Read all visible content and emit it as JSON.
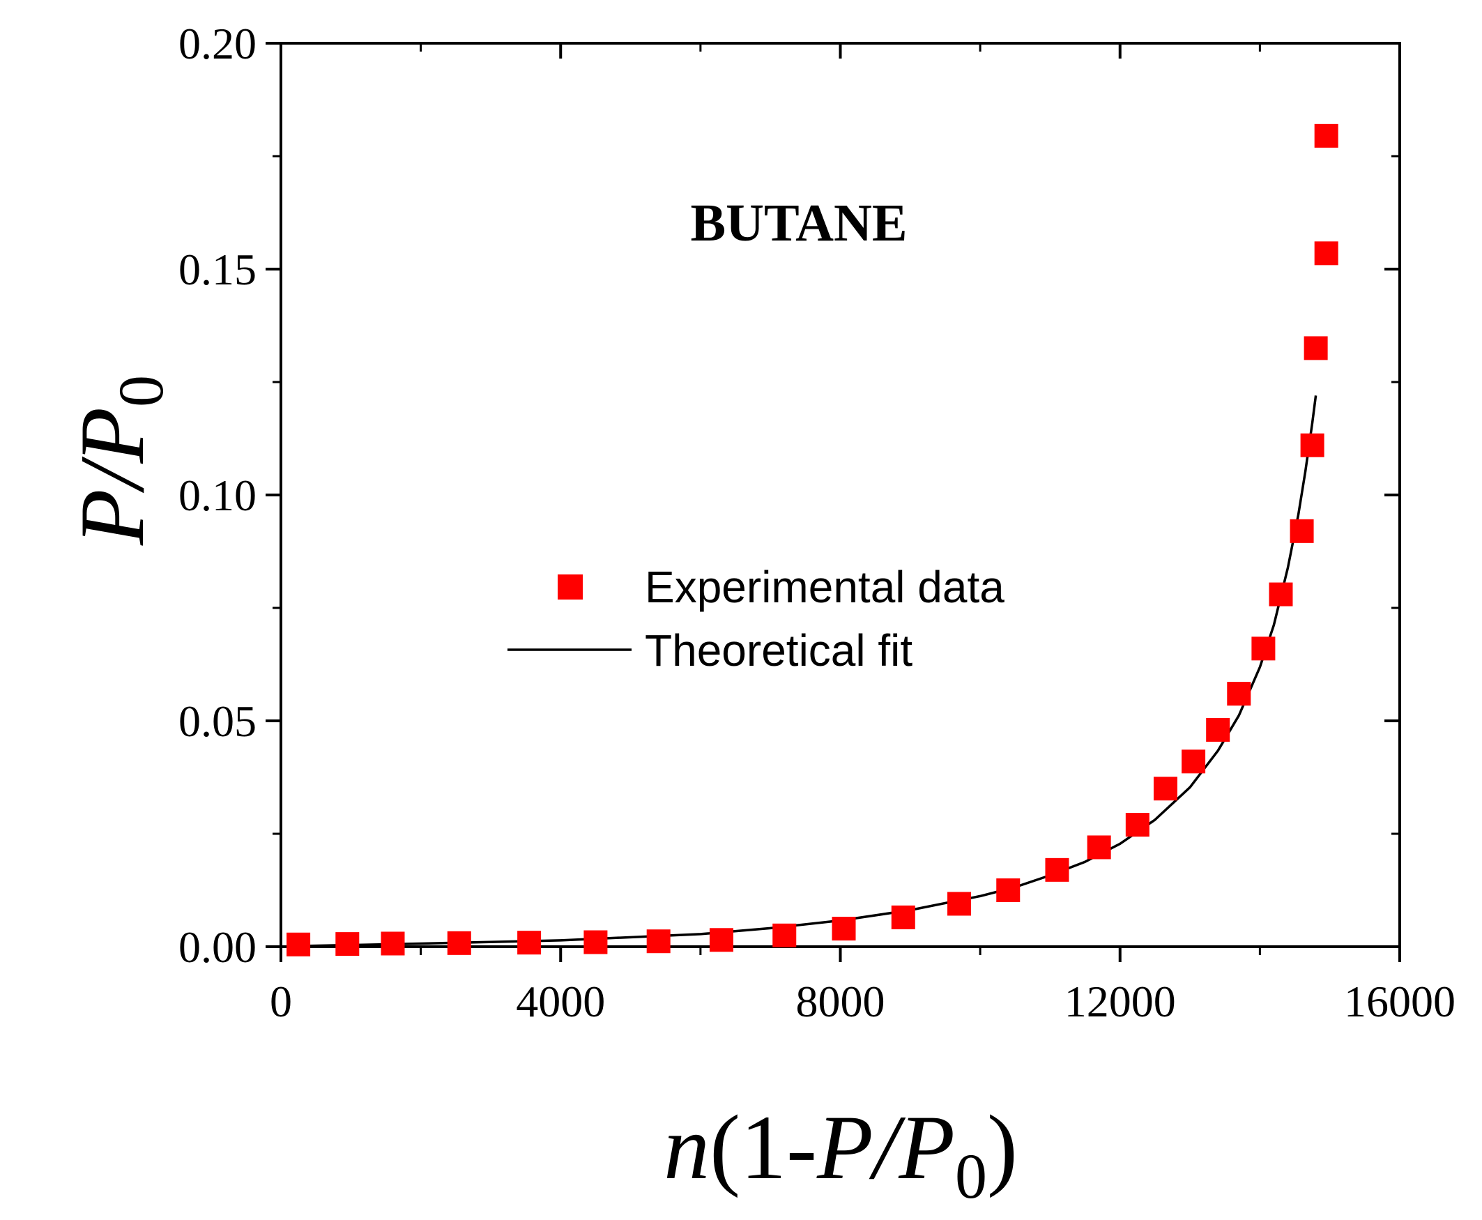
{
  "chart_data": {
    "type": "scatter",
    "annotation": "BUTANE",
    "xlabel": {
      "italic": "n",
      "open": "(1-",
      "P": "P",
      "slash": "/",
      "P0": "P",
      "sub": "0",
      "close": ")"
    },
    "ylabel": {
      "P": "P",
      "slash": "/",
      "P0": "P",
      "sub": "0"
    },
    "xlim": [
      0,
      16000
    ],
    "ylim": [
      0,
      0.2
    ],
    "x_ticks": [
      0,
      4000,
      8000,
      12000,
      16000
    ],
    "x_tick_labels": [
      "0",
      "4000",
      "8000",
      "12000",
      "16000"
    ],
    "y_ticks": [
      0,
      0.05,
      0.1,
      0.15,
      0.2
    ],
    "y_tick_labels": [
      "0.00",
      "0.05",
      "0.10",
      "0.15",
      "0.20"
    ],
    "grid": false,
    "legend_position": "center",
    "series": [
      {
        "name": "Experimental data",
        "kind": "marker",
        "color": "#ff0000",
        "x": [
          250,
          950,
          1600,
          2550,
          3550,
          4500,
          5400,
          6300,
          7200,
          8050,
          8900,
          9700,
          10400,
          11100,
          11700,
          12250,
          12650,
          13050,
          13400,
          13700,
          14050,
          14300,
          14600,
          14750,
          14800,
          14950,
          14950
        ],
        "y": [
          0.0005,
          0.0006,
          0.0007,
          0.0008,
          0.0009,
          0.001,
          0.0012,
          0.0015,
          0.0025,
          0.004,
          0.0065,
          0.0095,
          0.0125,
          0.017,
          0.022,
          0.027,
          0.035,
          0.041,
          0.048,
          0.056,
          0.066,
          0.078,
          0.092,
          0.111,
          0.1325,
          0.1535,
          0.1795
        ]
      },
      {
        "name": "Theoretical fit",
        "kind": "line",
        "color": "#000000",
        "x": [
          100,
          2000,
          4000,
          6000,
          7000,
          8000,
          9000,
          10000,
          10500,
          11000,
          11500,
          12000,
          12500,
          13000,
          13400,
          13700,
          14000,
          14200,
          14400,
          14550,
          14650,
          14750,
          14800
        ],
        "y": [
          0.0001,
          0.0007,
          0.0014,
          0.0028,
          0.0041,
          0.0058,
          0.0081,
          0.0112,
          0.0132,
          0.0158,
          0.0188,
          0.0228,
          0.0281,
          0.0353,
          0.0434,
          0.0512,
          0.0619,
          0.0712,
          0.0839,
          0.0956,
          0.1052,
          0.116,
          0.122
        ]
      }
    ]
  }
}
